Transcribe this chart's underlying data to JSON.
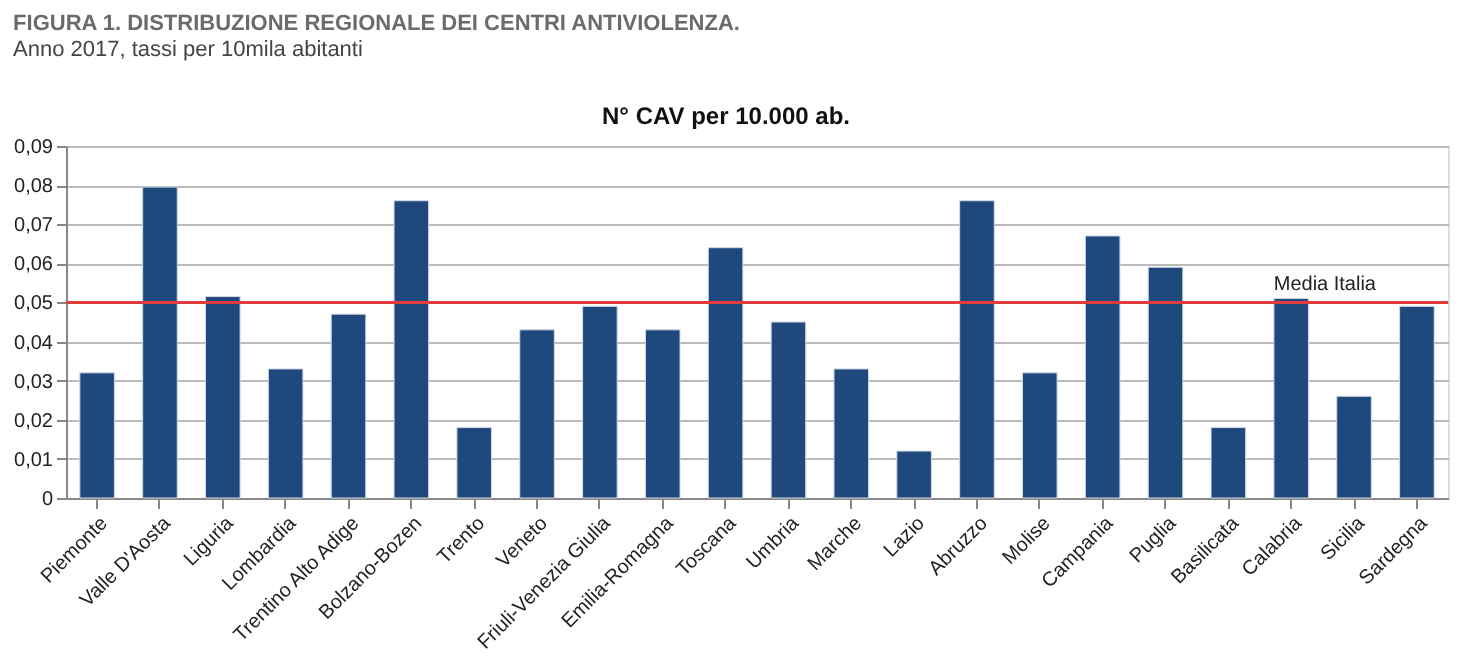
{
  "chart_data": {
    "type": "bar",
    "title": "FIGURA 1. DISTRIBUZIONE REGIONALE DEI CENTRI ANTIVIOLENZA.",
    "subtitle": "Anno 2017, tassi per 10mila abitanti",
    "annotations": [
      "N° CAV per 10.000 ab."
    ],
    "categories": [
      "Piemonte",
      "Valle D'Aosta",
      "Liguria",
      "Lombardia",
      "Trentino Alto Adige",
      "Bolzano-Bozen",
      "Trento",
      "Veneto",
      "Friuli-Venezia Giulia",
      "Emilia-Romagna",
      "Toscana",
      "Umbria",
      "Marche",
      "Lazio",
      "Abruzzo",
      "Molise",
      "Campania",
      "Puglia",
      "Basilicata",
      "Calabria",
      "Sicilia",
      "Sardegna"
    ],
    "values": [
      0.032,
      0.0795,
      0.0515,
      0.033,
      0.047,
      0.076,
      0.018,
      0.043,
      0.049,
      0.043,
      0.064,
      0.045,
      0.033,
      0.012,
      0.076,
      0.032,
      0.067,
      0.059,
      0.018,
      0.051,
      0.026,
      0.049
    ],
    "color": "#1f497d",
    "ylim": [
      0,
      0.09
    ],
    "yticks": [
      0,
      {
        "value": 0.01,
        "label": "0,01"
      },
      {
        "value": 0.02,
        "label": "0,02"
      },
      {
        "value": 0.03,
        "label": "0,03"
      },
      {
        "value": 0.04,
        "label": "0,04"
      },
      {
        "value": 0.05,
        "label": "0,05"
      },
      {
        "value": 0.06,
        "label": "0,06"
      },
      {
        "value": 0.07,
        "label": "0,07"
      },
      {
        "value": 0.08,
        "label": "0,08"
      },
      {
        "value": 0.09,
        "label": "0,09"
      }
    ],
    "grid": "y",
    "ref_lines": [
      {
        "axis": "y",
        "value": 0.05,
        "label": "Media Italia",
        "color": "#e03c3c"
      }
    ]
  }
}
